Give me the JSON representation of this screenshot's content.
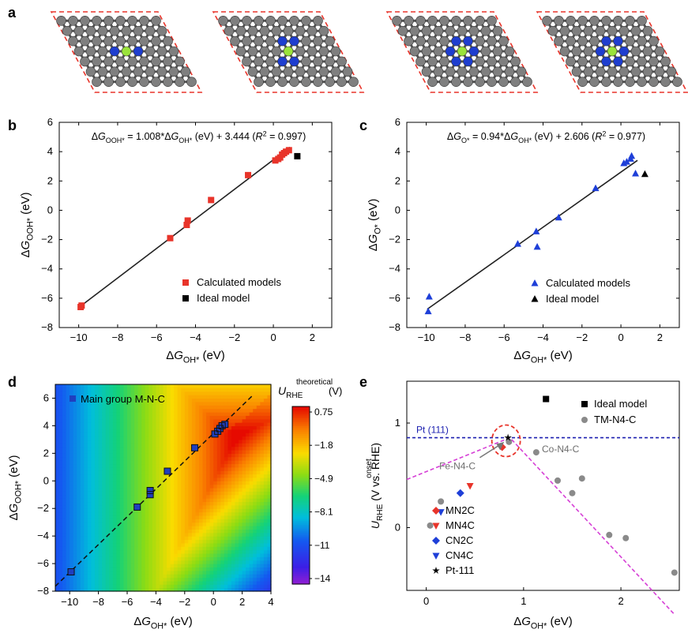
{
  "panel_labels": [
    "a",
    "b",
    "c",
    "d",
    "e"
  ],
  "panel_a": {
    "structures": [
      {
        "metal_color": "#9be33b",
        "n_count": 2,
        "layout": "MN2C"
      },
      {
        "metal_color": "#9be33b",
        "n_count": 2,
        "layout": "CN2C"
      },
      {
        "metal_color": "#9be33b",
        "n_count": 4,
        "layout": "CN4C"
      },
      {
        "metal_color": "#9be33b",
        "n_count": 4,
        "layout": "MN4C"
      }
    ],
    "carbon_color": "#7f7f7f",
    "nitrogen_color": "#1f3ecf",
    "cell_color": "#e8342a"
  },
  "chart_data": [
    {
      "panel": "b",
      "type": "scatter",
      "equation": "ΔG_OOH* = 1.008*ΔG_OH* (eV) + 3.444 (R² = 0.997)",
      "xlabel": "ΔG_OH* (eV)",
      "ylabel": "ΔG_OOH* (eV)",
      "xlim": [
        -11,
        3
      ],
      "ylim": [
        -8,
        6
      ],
      "xticks": [
        -10,
        -8,
        -6,
        -4,
        -2,
        0,
        2
      ],
      "yticks": [
        -8,
        -6,
        -4,
        -2,
        0,
        2,
        4,
        6
      ],
      "fit": {
        "slope": 1.008,
        "intercept": 3.444
      },
      "legend": [
        "Calculated models",
        "Ideal model"
      ],
      "series": [
        {
          "name": "Calculated models",
          "color": "#e8342a",
          "marker": "square",
          "points": [
            [
              -9.9,
              -6.6
            ],
            [
              -9.85,
              -6.5
            ],
            [
              -5.3,
              -1.9
            ],
            [
              -4.45,
              -1.0
            ],
            [
              -4.4,
              -0.7
            ],
            [
              -3.2,
              0.7
            ],
            [
              -1.3,
              2.4
            ],
            [
              0.1,
              3.4
            ],
            [
              0.25,
              3.5
            ],
            [
              0.35,
              3.6
            ],
            [
              0.45,
              3.8
            ],
            [
              0.55,
              3.9
            ],
            [
              0.65,
              4.0
            ],
            [
              0.8,
              4.1
            ]
          ]
        },
        {
          "name": "Ideal model",
          "color": "#000000",
          "marker": "square",
          "points": [
            [
              1.23,
              3.69
            ]
          ]
        }
      ]
    },
    {
      "panel": "c",
      "type": "scatter",
      "equation": "ΔG_O* = 0.94*ΔG_OH* (eV) + 2.606 (R² = 0.977)",
      "xlabel": "ΔG_OH* (eV)",
      "ylabel": "ΔG_O* (eV)",
      "xlim": [
        -11,
        3
      ],
      "ylim": [
        -8,
        6
      ],
      "xticks": [
        -10,
        -8,
        -6,
        -4,
        -2,
        0,
        2
      ],
      "yticks": [
        -8,
        -6,
        -4,
        -2,
        0,
        2,
        4,
        6
      ],
      "fit": {
        "slope": 0.94,
        "intercept": 2.606
      },
      "legend": [
        "Calculated models",
        "Ideal model"
      ],
      "series": [
        {
          "name": "Calculated models",
          "color": "#1e3fd8",
          "marker": "triangle",
          "points": [
            [
              -9.9,
              -6.9
            ],
            [
              -9.85,
              -5.9
            ],
            [
              -5.3,
              -2.3
            ],
            [
              -4.35,
              -1.45
            ],
            [
              -4.3,
              -2.5
            ],
            [
              -3.2,
              -0.5
            ],
            [
              -1.3,
              1.5
            ],
            [
              0.15,
              3.2
            ],
            [
              0.3,
              3.3
            ],
            [
              0.5,
              3.5
            ],
            [
              0.55,
              3.7
            ],
            [
              0.75,
              2.5
            ]
          ]
        },
        {
          "name": "Ideal model",
          "color": "#000000",
          "marker": "triangle",
          "points": [
            [
              1.23,
              2.46
            ]
          ]
        }
      ]
    },
    {
      "panel": "d",
      "type": "heatmap",
      "xlabel": "ΔG_OH* (eV)",
      "ylabel": "ΔG_OOH* (eV)",
      "xlim": [
        -11,
        4
      ],
      "ylim": [
        -8,
        7
      ],
      "xticks": [
        -10,
        -8,
        -6,
        -4,
        -2,
        0,
        2,
        4
      ],
      "yticks": [
        -8,
        -6,
        -4,
        -2,
        0,
        2,
        4,
        6
      ],
      "colorbar_title": "U_RHE^theoretical (V)",
      "colorbar_ticks": [
        "0.75",
        "-1.8",
        "-4.9",
        "-8.1",
        "-11",
        "-14"
      ],
      "colorbar_range": [
        -14.5,
        1.23
      ],
      "legend": [
        "Main group M-N-C"
      ],
      "series": [
        {
          "name": "Main group M-N-C",
          "color": "#1f3fbf",
          "marker": "square",
          "points": [
            [
              -9.9,
              -6.6
            ],
            [
              -5.3,
              -1.9
            ],
            [
              -4.4,
              -1.0
            ],
            [
              -4.4,
              -0.7
            ],
            [
              -3.2,
              0.7
            ],
            [
              -1.3,
              2.4
            ],
            [
              0.1,
              3.4
            ],
            [
              0.3,
              3.6
            ],
            [
              0.45,
              3.8
            ],
            [
              0.6,
              4.0
            ],
            [
              0.8,
              4.1
            ]
          ]
        }
      ]
    },
    {
      "panel": "e",
      "type": "scatter",
      "xlabel": "ΔG_OH* (eV)",
      "ylabel": "U_RHE^onset (V vs. RHE)",
      "xlim": [
        -0.2,
        2.6
      ],
      "ylim": [
        -0.6,
        1.4
      ],
      "xticks": [
        0,
        1,
        2
      ],
      "yticks": [
        0,
        1
      ],
      "pt_line": {
        "value": 0.86,
        "label": "Pt (111)"
      },
      "annotations": [
        "Fe-N4-C",
        "Co-N4-C"
      ],
      "legend": [
        "Ideal model",
        "TM-N4-C",
        "MN2C",
        "MN4C",
        "CN2C",
        "CN4C",
        "Pt-111"
      ],
      "series": [
        {
          "name": "Ideal model",
          "color": "#000000",
          "marker": "square",
          "points": [
            [
              1.23,
              1.23
            ]
          ]
        },
        {
          "name": "TM-N4-C",
          "color": "#8a8a8a",
          "marker": "circle",
          "points": [
            [
              0.04,
              0.02
            ],
            [
              0.15,
              0.25
            ],
            [
              0.85,
              0.82
            ],
            [
              1.13,
              0.72
            ],
            [
              1.35,
              0.45
            ],
            [
              1.5,
              0.33
            ],
            [
              1.6,
              0.47
            ],
            [
              1.88,
              -0.07
            ],
            [
              2.05,
              -0.1
            ],
            [
              2.55,
              -0.43
            ]
          ]
        },
        {
          "name": "MN2C",
          "color": "#e8342a",
          "marker": "diamond",
          "points": [
            [
              0.78,
              0.77
            ]
          ]
        },
        {
          "name": "MN4C",
          "color": "#e8342a",
          "marker": "triangle-down",
          "points": [
            [
              0.45,
              0.4
            ]
          ]
        },
        {
          "name": "CN2C",
          "color": "#1e3fd8",
          "marker": "diamond",
          "points": [
            [
              0.35,
              0.33
            ]
          ]
        },
        {
          "name": "CN4C",
          "color": "#1e3fd8",
          "marker": "triangle-down",
          "points": [
            [
              0.15,
              0.15
            ]
          ]
        },
        {
          "name": "Pt-111",
          "color": "#000000",
          "marker": "star",
          "points": [
            [
              0.84,
              0.86
            ]
          ]
        }
      ],
      "volcano": {
        "peak": [
          0.86,
          0.86
        ],
        "x_range": [
          -0.2,
          2.55
        ]
      }
    }
  ]
}
